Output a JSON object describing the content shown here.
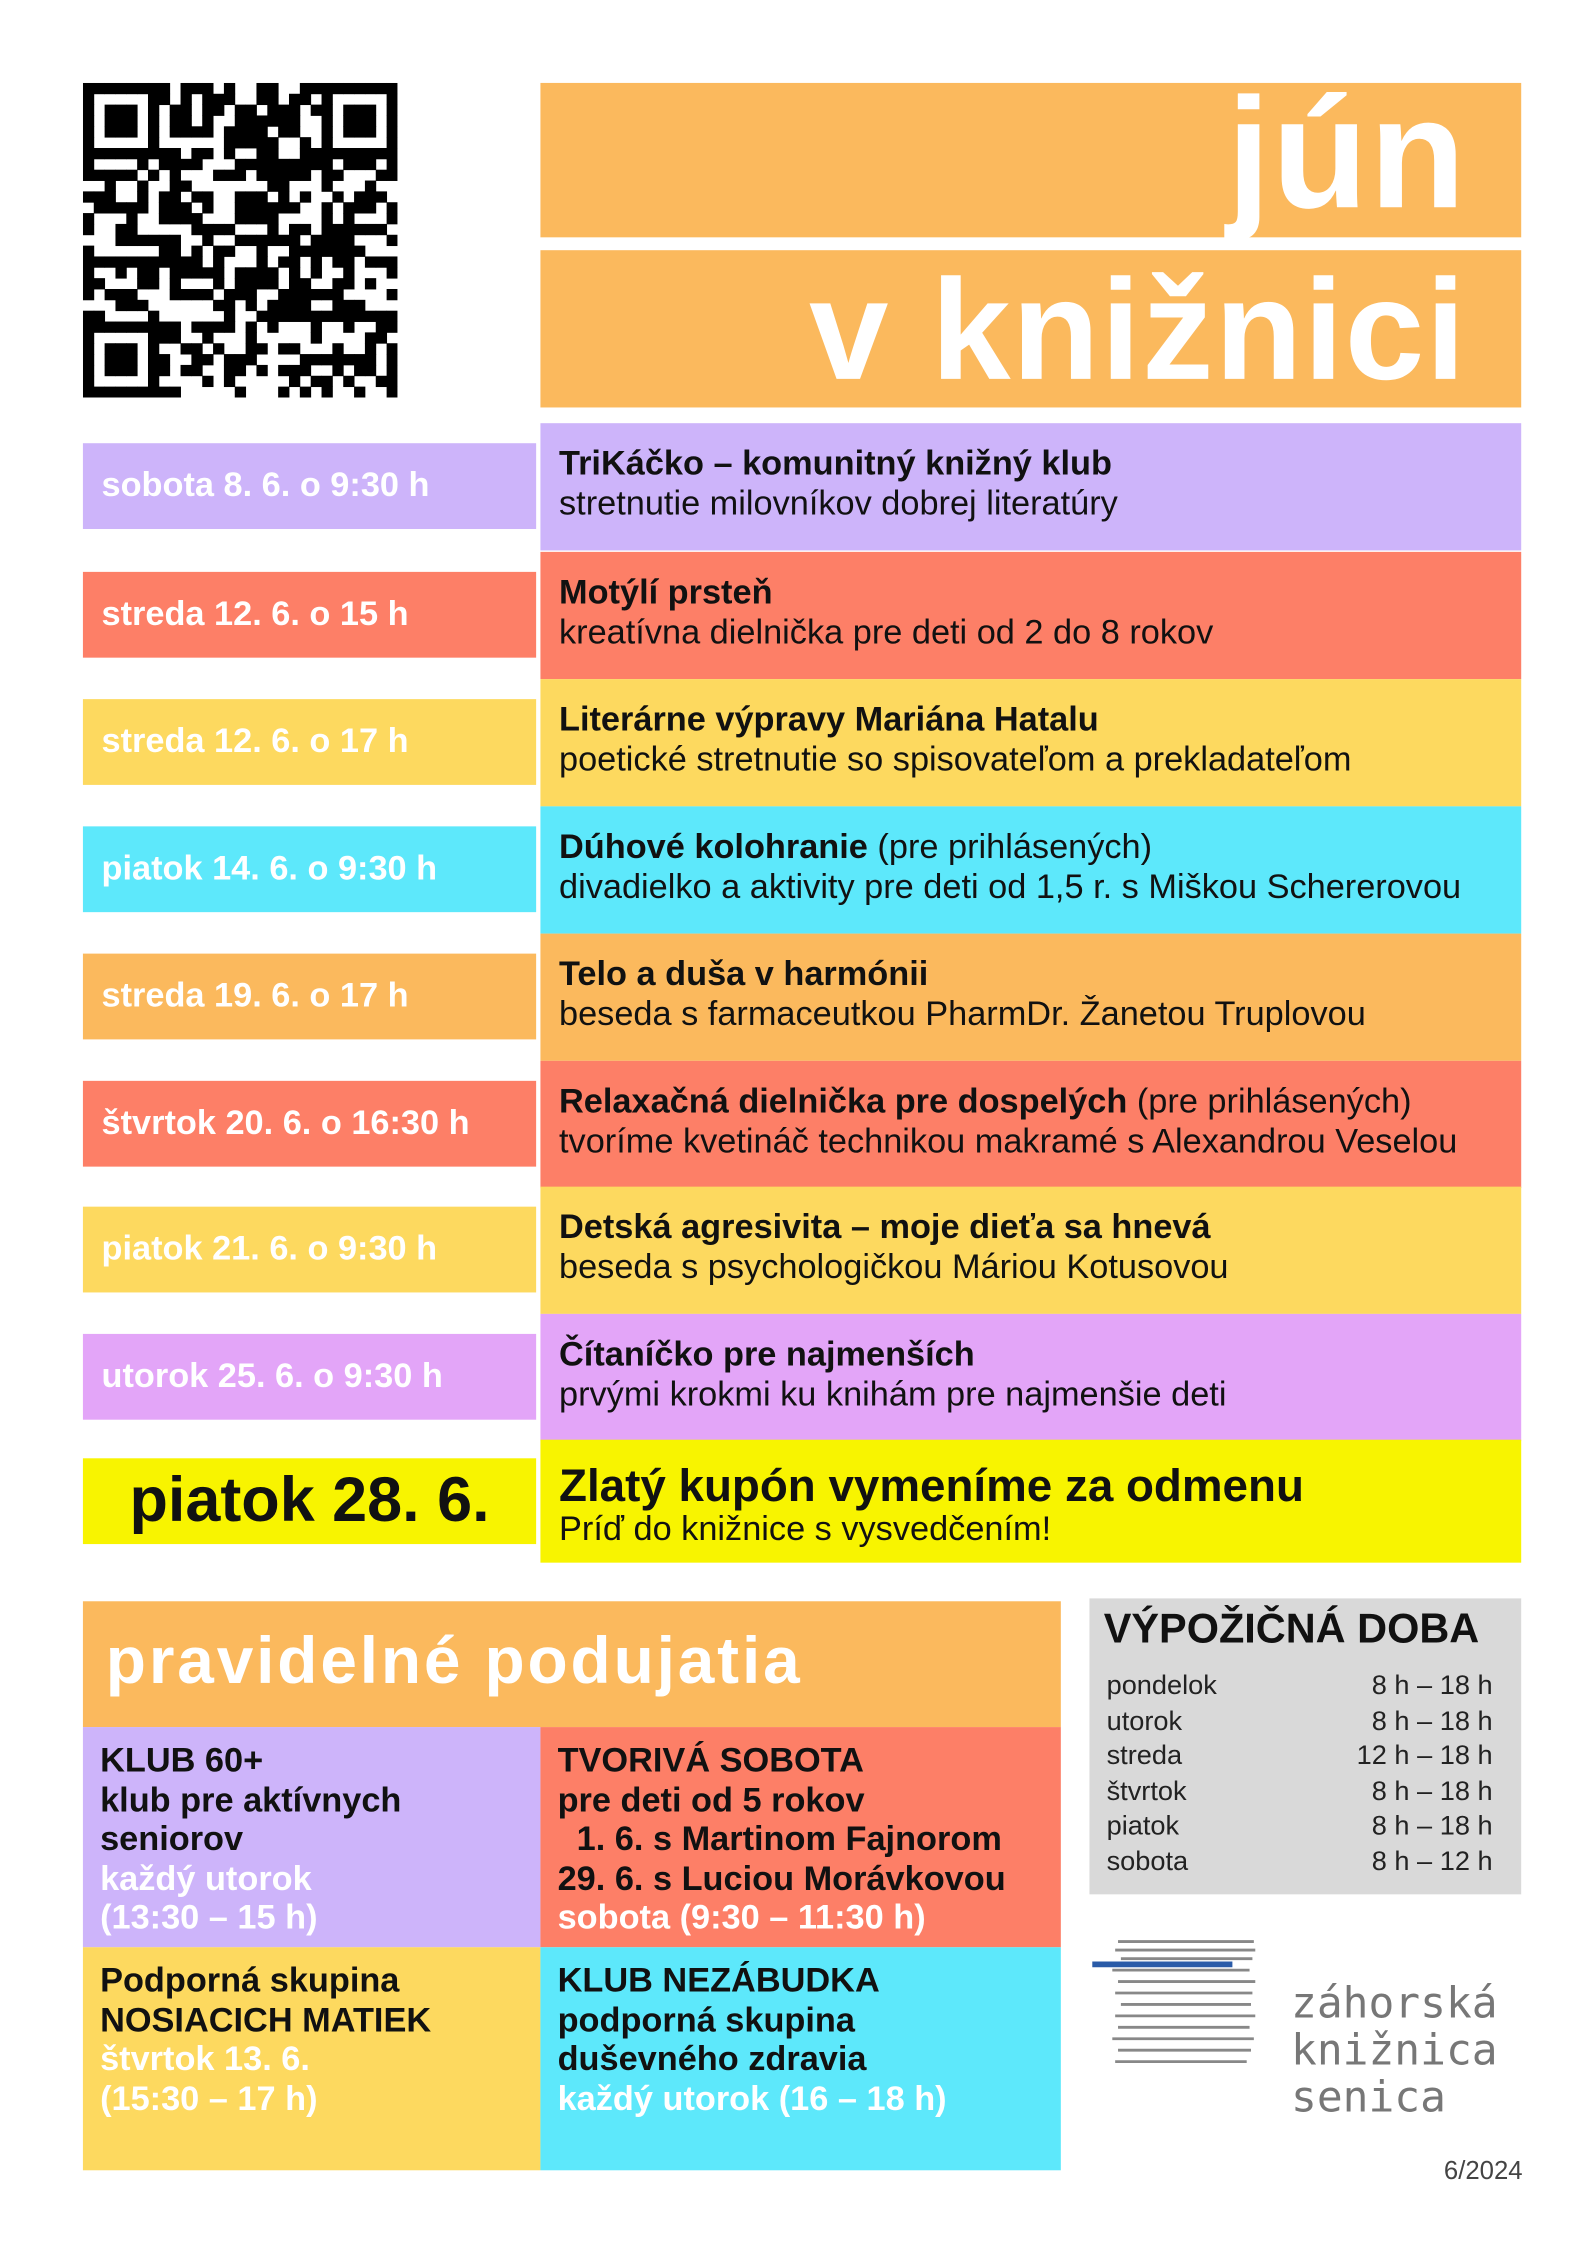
{
  "header": {
    "title_line1": "jún",
    "title_line2": "v knižnici"
  },
  "events": [
    {
      "date": "sobota 8. 6. o 9:30 h",
      "title": "TriKáčko – komunitný knižný klub",
      "description": "stretnutie milovníkov dobrej literatúry",
      "color": "#cdb4fa"
    },
    {
      "date": "streda 12. 6. o 15 h",
      "title": "Motýlí prsteň",
      "description": "kreatívna dielnička pre deti od 2 do 8 rokov",
      "color": "#fd7f67"
    },
    {
      "date": "streda 12. 6. o 17 h",
      "title": "Literárne výpravy Mariána Hatalu",
      "description": "poetické stretnutie so spisovateľom a prekladateľom",
      "color": "#fdd95f"
    },
    {
      "date": "piatok 14. 6. o 9:30 h",
      "title": "Dúhové kolohranie",
      "note": "(pre prihlásených)",
      "description": "divadielko a aktivity pre deti od 1,5 r. s Miškou Schererovou",
      "color": "#5de8fb"
    },
    {
      "date": "streda 19. 6. o 17 h",
      "title": "Telo a duša v harmónii",
      "description": "beseda s farmaceutkou PharmDr. Žanetou Truplovou",
      "color": "#fbb95d"
    },
    {
      "date": "štvrtok 20. 6. o 16:30 h",
      "title": "Relaxačná dielnička pre dospelých",
      "note": "(pre prihlásených)",
      "description": "tvoríme kvetináč technikou makramé s Alexandrou Veselou",
      "color": "#fd7f67"
    },
    {
      "date": "piatok 21. 6. o 9:30 h",
      "title": "Detská agresivita – moje dieťa sa hnevá",
      "description": "beseda s psychologičkou Máriou Kotusovou",
      "color": "#fdd95f"
    },
    {
      "date": "utorok 25. 6. o 9:30 h",
      "title": "Čítaníčko pre najmenších",
      "description": "prvými krokmi ku knihám pre najmenšie deti",
      "color": "#e3a5f8"
    },
    {
      "date": "piatok 28. 6.",
      "title": "Zlatý kupón vymeníme za odmenu",
      "description": "Príď do knižnice s vysvedčením!",
      "color": "#f8f400"
    }
  ],
  "regular": {
    "title": "pravidelné podujatia",
    "items": [
      {
        "lines": [
          "KLUB 60+",
          "klub pre aktívnych",
          "seniorov"
        ],
        "when": [
          "každý utorok",
          "(13:30 – 15 h)"
        ],
        "color": "#cdb4fa"
      },
      {
        "lines": [
          "TVORIVÁ SOBOTA",
          "pre deti od 5 rokov",
          "  1. 6. s Martinom Fajnorom",
          "29. 6. s Luciou Morávkovou"
        ],
        "when": [
          "sobota (9:30 – 11:30 h)"
        ],
        "color": "#fd7f67"
      },
      {
        "lines": [
          "Podporná skupina",
          "NOSIACICH MATIEK"
        ],
        "when": [
          "štvrtok 13. 6.",
          "(15:30 – 17 h)"
        ],
        "color": "#fdd95f"
      },
      {
        "lines": [
          "KLUB NEZÁBUDKA",
          "podporná skupina",
          "duševného zdravia"
        ],
        "when": [
          "každý utorok (16 – 18 h)"
        ],
        "color": "#5de8fb"
      }
    ]
  },
  "hours": {
    "title": "VÝPOŽIČNÁ DOBA",
    "rows": [
      [
        "pondelok",
        "8 h – 18 h"
      ],
      [
        "utorok",
        "8 h – 18 h"
      ],
      [
        "streda",
        "12 h – 18 h"
      ],
      [
        "štvrtok",
        "8 h – 18 h"
      ],
      [
        "piatok",
        "8 h – 18 h"
      ],
      [
        "sobota",
        "8 h – 12 h"
      ]
    ]
  },
  "logo": {
    "lines": [
      "záhorská",
      "knižnica",
      "senica"
    ]
  },
  "footer": "6/2024"
}
